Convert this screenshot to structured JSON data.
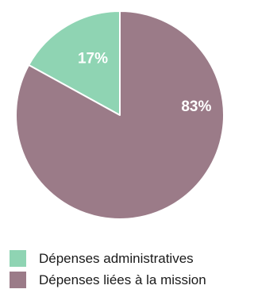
{
  "chart_data": {
    "type": "pie",
    "slices": [
      {
        "label": "Dépenses administratives",
        "value": 17,
        "display": "17%",
        "color": "#8fd4b3"
      },
      {
        "label": "Dépenses liées à la mission",
        "value": 83,
        "display": "83%",
        "color": "#9b7b88"
      }
    ],
    "legend_position": "bottom-left"
  }
}
